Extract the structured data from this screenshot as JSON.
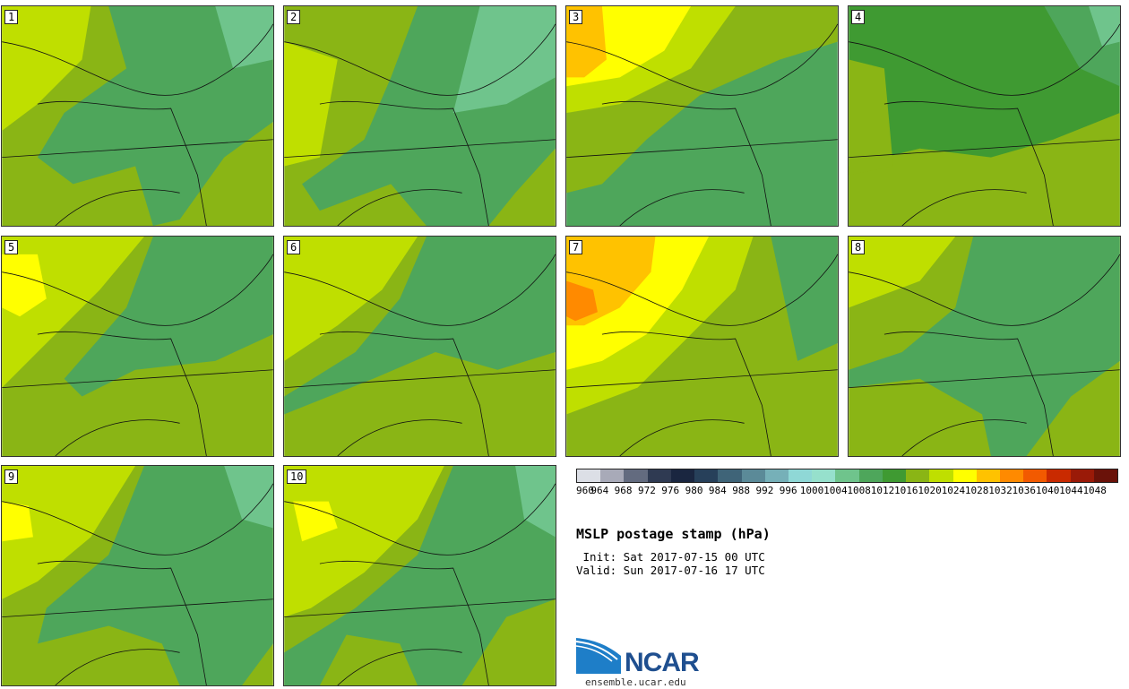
{
  "title": "MSLP postage stamp (hPa)",
  "init_label": " Init: Sat 2017-07-15 00 UTC",
  "valid_label": "Valid: Sun 2017-07-16 17 UTC",
  "logo_text": "NCAR",
  "site": "ensemble.ucar.edu",
  "members": [
    {
      "label": "1",
      "theme": "mix"
    },
    {
      "label": "2",
      "theme": "mix"
    },
    {
      "label": "3",
      "theme": "high"
    },
    {
      "label": "4",
      "theme": "dark"
    },
    {
      "label": "5",
      "theme": "yellow"
    },
    {
      "label": "6",
      "theme": "mix"
    },
    {
      "label": "7",
      "theme": "high"
    },
    {
      "label": "8",
      "theme": "mix"
    },
    {
      "label": "9",
      "theme": "dark"
    },
    {
      "label": "10",
      "theme": "yellow"
    }
  ],
  "colorbar": {
    "ticks": [
      "960",
      "964",
      "968",
      "972",
      "976",
      "980",
      "984",
      "988",
      "992",
      "996",
      "1000",
      "1004",
      "1008",
      "1012",
      "1016",
      "1020",
      "1024",
      "1028",
      "1032",
      "1036",
      "1040",
      "1044",
      "1048"
    ],
    "colors": [
      "#dcdfe6",
      "#a8aab8",
      "#636b7f",
      "#2f3a52",
      "#1a2640",
      "#27405a",
      "#3f6478",
      "#5b8a98",
      "#76b0b8",
      "#8fd8d6",
      "#96e0cc",
      "#6fc48c",
      "#4ea65b",
      "#3f9a32",
      "#8ab515",
      "#bfdf00",
      "#ffff00",
      "#ffc200",
      "#ff8a00",
      "#f25a00",
      "#c92a00",
      "#9a1a08",
      "#6a1209"
    ]
  }
}
